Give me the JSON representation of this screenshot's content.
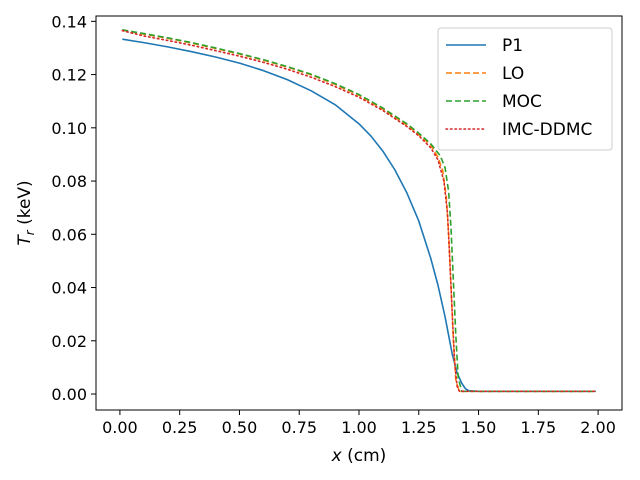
{
  "chart_data": {
    "type": "line",
    "title": "",
    "xlabel_var": "x",
    "xlabel_unit": "(cm)",
    "ylabel_var": "T",
    "ylabel_sub": "r",
    "ylabel_unit": "(keV)",
    "xlim": [
      -0.1,
      2.1
    ],
    "ylim": [
      -0.006,
      0.142
    ],
    "xticks": [
      0.0,
      0.25,
      0.5,
      0.75,
      1.0,
      1.25,
      1.5,
      1.75,
      2.0
    ],
    "xtick_labels": [
      "0.00",
      "0.25",
      "0.50",
      "0.75",
      "1.00",
      "1.25",
      "1.50",
      "1.75",
      "2.00"
    ],
    "yticks": [
      0.0,
      0.02,
      0.04,
      0.06,
      0.08,
      0.1,
      0.12,
      0.14
    ],
    "ytick_labels": [
      "0.00",
      "0.02",
      "0.04",
      "0.06",
      "0.08",
      "0.10",
      "0.12",
      "0.14"
    ],
    "grid": false,
    "legend_position": "top-right",
    "series": [
      {
        "name": "P1",
        "color": "#1f77b4",
        "style": "solid",
        "x": [
          0.01,
          0.1,
          0.2,
          0.3,
          0.4,
          0.5,
          0.6,
          0.7,
          0.8,
          0.9,
          1.0,
          1.05,
          1.1,
          1.15,
          1.2,
          1.25,
          1.3,
          1.33,
          1.36,
          1.39,
          1.41,
          1.43,
          1.445,
          1.46,
          1.5,
          1.75,
          1.99
        ],
        "y": [
          0.1333,
          0.132,
          0.1304,
          0.1286,
          0.1266,
          0.1243,
          0.1215,
          0.1181,
          0.1139,
          0.1087,
          0.1015,
          0.0969,
          0.0912,
          0.0842,
          0.0756,
          0.065,
          0.051,
          0.041,
          0.029,
          0.015,
          0.008,
          0.004,
          0.002,
          0.0012,
          0.001,
          0.001,
          0.001
        ]
      },
      {
        "name": "LO",
        "color": "#ff7f0e",
        "style": "dashed",
        "x": [
          0.01,
          0.1,
          0.2,
          0.3,
          0.4,
          0.5,
          0.6,
          0.7,
          0.8,
          0.9,
          1.0,
          1.1,
          1.2,
          1.25,
          1.3,
          1.33,
          1.35,
          1.365,
          1.375,
          1.385,
          1.395,
          1.405,
          1.42,
          1.5,
          1.75,
          1.99
        ],
        "y": [
          0.1367,
          0.1352,
          0.1336,
          0.1318,
          0.1298,
          0.1277,
          0.1254,
          0.1228,
          0.1199,
          0.1163,
          0.1122,
          0.107,
          0.101,
          0.0975,
          0.0935,
          0.089,
          0.084,
          0.074,
          0.06,
          0.04,
          0.02,
          0.005,
          0.001,
          0.001,
          0.001,
          0.001
        ]
      },
      {
        "name": "MOC",
        "color": "#2ca02c",
        "style": "dashed",
        "x": [
          0.01,
          0.1,
          0.2,
          0.3,
          0.4,
          0.5,
          0.6,
          0.7,
          0.8,
          0.9,
          1.0,
          1.1,
          1.2,
          1.25,
          1.3,
          1.34,
          1.36,
          1.375,
          1.385,
          1.395,
          1.405,
          1.415,
          1.43,
          1.5,
          1.75,
          1.99
        ],
        "y": [
          0.1368,
          0.1354,
          0.1338,
          0.132,
          0.13,
          0.1279,
          0.1256,
          0.123,
          0.1201,
          0.1166,
          0.1125,
          0.1074,
          0.1015,
          0.098,
          0.094,
          0.0895,
          0.085,
          0.076,
          0.062,
          0.042,
          0.022,
          0.006,
          0.001,
          0.001,
          0.001,
          0.001
        ]
      },
      {
        "name": "IMC-DDMC",
        "color": "#d62728",
        "style": "dotted",
        "x": [
          0.01,
          0.1,
          0.2,
          0.3,
          0.4,
          0.5,
          0.6,
          0.7,
          0.8,
          0.9,
          1.0,
          1.1,
          1.2,
          1.25,
          1.3,
          1.33,
          1.355,
          1.37,
          1.38,
          1.39,
          1.4,
          1.41,
          1.42,
          1.5,
          1.75,
          1.99
        ],
        "y": [
          0.1365,
          0.1345,
          0.1328,
          0.131,
          0.129,
          0.1269,
          0.1246,
          0.122,
          0.119,
          0.1155,
          0.1115,
          0.1065,
          0.1005,
          0.097,
          0.0925,
          0.088,
          0.08,
          0.068,
          0.05,
          0.03,
          0.012,
          0.003,
          0.001,
          0.001,
          0.001,
          0.001
        ]
      }
    ]
  }
}
